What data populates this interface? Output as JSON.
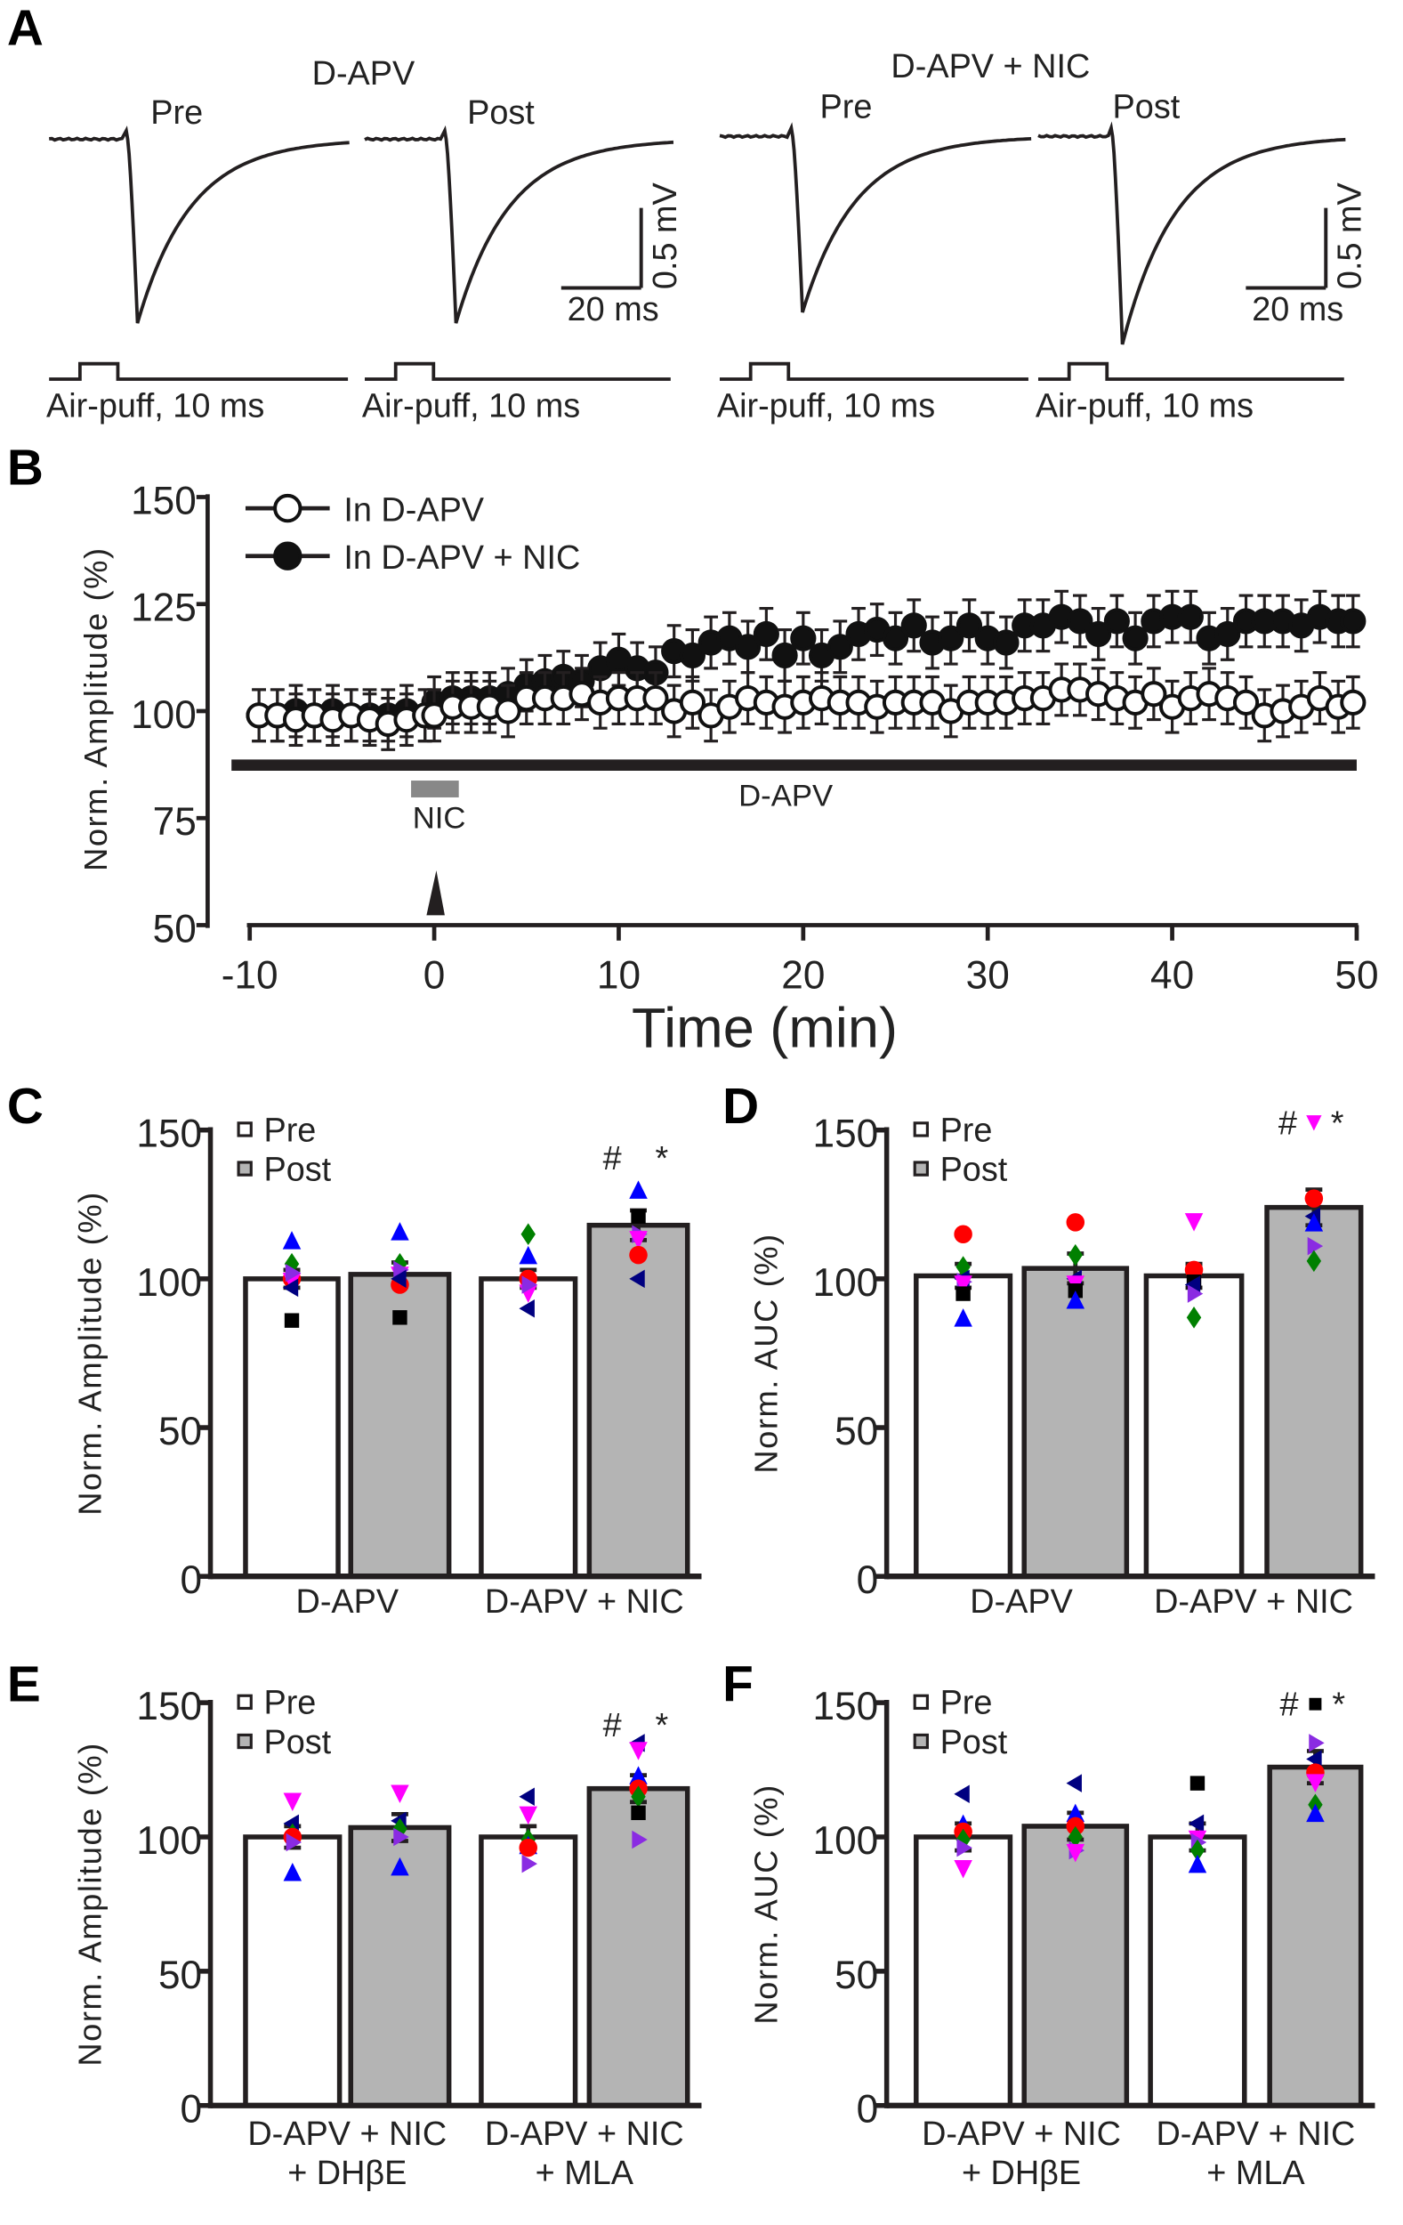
{
  "chart_data": [
    {
      "panel": "A",
      "type": "line",
      "title": "Example air-puff evoked responses",
      "groups": [
        {
          "title": "D-APV",
          "traces": [
            {
              "label": "Pre",
              "peak_mV": -1.15,
              "stimulus": "Air-puff, 10 ms"
            },
            {
              "label": "Post",
              "peak_mV": -1.15,
              "stimulus": "Air-puff, 10 ms"
            }
          ],
          "scale_x": "20 ms",
          "scale_y": "0.5 mV"
        },
        {
          "title": "D-APV + NIC",
          "traces": [
            {
              "label": "Pre",
              "peak_mV": -1.1,
              "stimulus": "Air-puff, 10 ms"
            },
            {
              "label": "Post",
              "peak_mV": -1.3,
              "stimulus": "Air-puff, 10 ms"
            }
          ],
          "scale_x": "20 ms",
          "scale_y": "0.5 mV"
        }
      ]
    },
    {
      "panel": "B",
      "type": "scatter",
      "xlabel": "Time (min)",
      "ylabel": "Norm. Amplitude (%)",
      "xlim": [
        -10,
        50
      ],
      "ylim": [
        50,
        150
      ],
      "xticks": [
        "-10",
        "0",
        "10",
        "20",
        "30",
        "40",
        "50"
      ],
      "yticks": [
        "50",
        "75",
        "100",
        "125",
        "150"
      ],
      "legend_position": "top-left",
      "annotations": {
        "bath_bar": "D-APV",
        "drug_bar": "NIC"
      },
      "x_pre": [
        -10,
        -9,
        -8,
        -7,
        -6,
        -5,
        -4,
        -3,
        -2,
        -1
      ],
      "x_post": [
        0,
        1,
        2,
        3,
        4,
        5,
        6,
        7,
        8,
        9,
        10,
        11,
        12,
        13,
        14,
        15,
        16,
        17,
        18,
        19,
        20,
        21,
        22,
        23,
        24,
        25,
        26,
        27,
        28,
        29,
        30,
        31,
        32,
        33,
        34,
        35,
        36,
        37,
        38,
        39,
        40,
        41,
        42,
        43,
        44,
        45,
        46,
        47,
        48,
        49,
        50
      ],
      "series": [
        {
          "name": "In D-APV",
          "marker": "open-circle",
          "error": 6,
          "pre": [
            99,
            99,
            98,
            99,
            98,
            99,
            98,
            97,
            98,
            99
          ],
          "post": [
            99,
            101,
            101,
            101,
            100,
            103,
            103,
            103,
            104,
            102,
            103,
            103,
            103,
            100,
            102,
            99,
            101,
            103,
            102,
            101,
            102,
            103,
            102,
            102,
            101,
            102,
            102,
            102,
            100,
            102,
            102,
            102,
            103,
            103,
            105,
            105,
            104,
            103,
            102,
            104,
            101,
            103,
            104,
            103,
            102,
            99,
            100,
            101,
            103,
            101,
            102
          ]
        },
        {
          "name": "In D-APV + NIC",
          "marker": "filled-circle",
          "error": 6,
          "pre": [
            99,
            99,
            100,
            99,
            100,
            99,
            99,
            99,
            100,
            99
          ],
          "post": [
            102,
            103,
            103,
            103,
            104,
            106,
            107,
            108,
            107,
            110,
            112,
            110,
            109,
            114,
            113,
            116,
            117,
            115,
            118,
            113,
            117,
            113,
            115,
            118,
            119,
            117,
            120,
            116,
            117,
            120,
            117,
            116,
            120,
            120,
            122,
            121,
            118,
            121,
            117,
            121,
            122,
            122,
            117,
            118,
            121,
            121,
            121,
            120,
            122,
            121,
            121
          ]
        }
      ]
    },
    {
      "panel": "C",
      "type": "bar",
      "ylabel": "Norm. Amplitude (%)",
      "ylim": [
        0,
        150
      ],
      "yticks": [
        "0",
        "50",
        "100",
        "150"
      ],
      "legend": [
        "Pre",
        "Post"
      ],
      "categories": [
        "D-APV",
        "D-APV + NIC"
      ],
      "annotation": [
        "#",
        "*"
      ],
      "annotation_marker": "diamond:#008000",
      "bars": [
        {
          "group": "Pre",
          "value": 100,
          "sem": 3,
          "points": [
            [
              113,
              "up",
              "#0000ff"
            ],
            [
              105,
              "dia",
              "#008000"
            ],
            [
              100,
              "cir",
              "#ff0000"
            ],
            [
              99,
              "dn",
              "#ff00ff"
            ],
            [
              102,
              "rt",
              "#8a2be2"
            ],
            [
              97,
              "lt",
              "#000080"
            ],
            [
              86,
              "sq",
              "#000000"
            ]
          ]
        },
        {
          "group": "Post",
          "value": 101.5,
          "sem": 4,
          "points": [
            [
              116,
              "up",
              "#0000ff"
            ],
            [
              105,
              "dia",
              "#008000"
            ],
            [
              98,
              "cir",
              "#ff0000"
            ],
            [
              101,
              "dn",
              "#ff00ff"
            ],
            [
              103,
              "rt",
              "#8a2be2"
            ],
            [
              100,
              "lt",
              "#000080"
            ],
            [
              87,
              "sq",
              "#000000"
            ]
          ]
        },
        {
          "group": "Pre",
          "value": 100,
          "sem": 3,
          "points": [
            [
              115,
              "dia",
              "#008000"
            ],
            [
              108,
              "up",
              "#0000ff"
            ],
            [
              100,
              "cir",
              "#ff0000"
            ],
            [
              95,
              "dn",
              "#ff00ff"
            ],
            [
              98,
              "rt",
              "#8a2be2"
            ],
            [
              90,
              "lt",
              "#000080"
            ]
          ]
        },
        {
          "group": "Post",
          "value": 118,
          "sem": 5,
          "points": [
            [
              130,
              "up",
              "#0000ff"
            ],
            [
              121,
              "sq",
              "#000000"
            ],
            [
              115,
              "rt",
              "#8a2be2"
            ],
            [
              113,
              "dn",
              "#ff00ff"
            ],
            [
              108,
              "cir",
              "#ff0000"
            ],
            [
              100,
              "lt",
              "#000080"
            ]
          ]
        }
      ]
    },
    {
      "panel": "D",
      "type": "bar",
      "ylabel": "Norm. AUC (%)",
      "ylim": [
        0,
        150
      ],
      "yticks": [
        "0",
        "50",
        "100",
        "150"
      ],
      "legend": [
        "Pre",
        "Post"
      ],
      "categories": [
        "D-APV",
        "D-APV + NIC"
      ],
      "annotation": [
        "#",
        "*"
      ],
      "annotation_marker": "dn:#ff00ff",
      "bars": [
        {
          "group": "Pre",
          "value": 101,
          "sem": 4,
          "points": [
            [
              115,
              "cir",
              "#ff0000"
            ],
            [
              104,
              "dia",
              "#008000"
            ],
            [
              100,
              "lt",
              "#000080"
            ],
            [
              99,
              "rt",
              "#8a2be2"
            ],
            [
              98,
              "dn",
              "#ff00ff"
            ],
            [
              95,
              "sq",
              "#000000"
            ],
            [
              87,
              "up",
              "#0000ff"
            ]
          ]
        },
        {
          "group": "Post",
          "value": 103.5,
          "sem": 5,
          "points": [
            [
              119,
              "cir",
              "#ff0000"
            ],
            [
              108,
              "dia",
              "#008000"
            ],
            [
              100,
              "lt",
              "#000080"
            ],
            [
              98,
              "dn",
              "#ff00ff"
            ],
            [
              96,
              "sq",
              "#000000"
            ],
            [
              93,
              "up",
              "#0000ff"
            ]
          ]
        },
        {
          "group": "Pre",
          "value": 101,
          "sem": 4,
          "points": [
            [
              119,
              "dn",
              "#ff00ff"
            ],
            [
              103,
              "cir",
              "#ff0000"
            ],
            [
              99,
              "sq",
              "#000000"
            ],
            [
              98,
              "lt",
              "#000080"
            ],
            [
              95,
              "rt",
              "#8a2be2"
            ],
            [
              87,
              "dia",
              "#008000"
            ]
          ]
        },
        {
          "group": "Post",
          "value": 124,
          "sem": 6,
          "points": [
            [
              127,
              "cir",
              "#ff0000"
            ],
            [
              121,
              "lt",
              "#000080"
            ],
            [
              119,
              "up",
              "#0000ff"
            ],
            [
              111,
              "rt",
              "#8a2be2"
            ],
            [
              106,
              "dia",
              "#008000"
            ]
          ]
        }
      ]
    },
    {
      "panel": "E",
      "type": "bar",
      "ylabel": "Norm. Amplitude (%)",
      "ylim": [
        0,
        150
      ],
      "yticks": [
        "0",
        "50",
        "100",
        "150"
      ],
      "legend": [
        "Pre",
        "Post"
      ],
      "categories": [
        "D-APV + NIC\n+ DHβE",
        "D-APV + NIC\n+ MLA"
      ],
      "category_lines": [
        [
          "D-APV + NIC",
          "+ DHβE"
        ],
        [
          "D-APV + NIC",
          "+ MLA"
        ]
      ],
      "annotation": [
        "#",
        "*"
      ],
      "annotation_marker": "",
      "bars": [
        {
          "group": "Pre",
          "value": 100,
          "sem": 4,
          "points": [
            [
              113,
              "dn",
              "#ff00ff"
            ],
            [
              105,
              "lt",
              "#000080"
            ],
            [
              101,
              "dia",
              "#008000"
            ],
            [
              100,
              "cir",
              "#ff0000"
            ],
            [
              98,
              "rt",
              "#8a2be2"
            ],
            [
              87,
              "up",
              "#0000ff"
            ]
          ]
        },
        {
          "group": "Post",
          "value": 103.5,
          "sem": 5,
          "points": [
            [
              116,
              "dn",
              "#ff00ff"
            ],
            [
              106,
              "lt",
              "#000080"
            ],
            [
              103,
              "dia",
              "#008000"
            ],
            [
              100,
              "rt",
              "#8a2be2"
            ],
            [
              89,
              "up",
              "#0000ff"
            ]
          ]
        },
        {
          "group": "Pre",
          "value": 100,
          "sem": 4,
          "points": [
            [
              115,
              "lt",
              "#000080"
            ],
            [
              108,
              "dn",
              "#ff00ff"
            ],
            [
              99,
              "dia",
              "#008000"
            ],
            [
              97,
              "up",
              "#0000ff"
            ],
            [
              96,
              "cir",
              "#ff0000"
            ],
            [
              90,
              "rt",
              "#8a2be2"
            ]
          ]
        },
        {
          "group": "Post",
          "value": 118,
          "sem": 5,
          "points": [
            [
              135,
              "lt",
              "#000080"
            ],
            [
              132,
              "dn",
              "#ff00ff"
            ],
            [
              123,
              "up",
              "#0000ff"
            ],
            [
              118,
              "cir",
              "#ff0000"
            ],
            [
              115,
              "dia",
              "#008000"
            ],
            [
              109,
              "sq",
              "#000000"
            ],
            [
              99,
              "rt",
              "#8a2be2"
            ]
          ]
        }
      ]
    },
    {
      "panel": "F",
      "type": "bar",
      "ylabel": "Norm. AUC (%)",
      "ylim": [
        0,
        150
      ],
      "yticks": [
        "0",
        "50",
        "100",
        "150"
      ],
      "legend": [
        "Pre",
        "Post"
      ],
      "categories": [
        "D-APV + NIC\n+ DHβE",
        "D-APV + NIC\n+ MLA"
      ],
      "category_lines": [
        [
          "D-APV + NIC",
          "+ DHβE"
        ],
        [
          "D-APV + NIC",
          "+ MLA"
        ]
      ],
      "annotation": [
        "#",
        "*"
      ],
      "annotation_marker": "sq:#000000",
      "bars": [
        {
          "group": "Pre",
          "value": 100,
          "sem": 5,
          "points": [
            [
              116,
              "lt",
              "#000080"
            ],
            [
              105,
              "up",
              "#0000ff"
            ],
            [
              102,
              "cir",
              "#ff0000"
            ],
            [
              99,
              "dia",
              "#008000"
            ],
            [
              96,
              "rt",
              "#8a2be2"
            ],
            [
              88,
              "dn",
              "#ff00ff"
            ]
          ]
        },
        {
          "group": "Post",
          "value": 104,
          "sem": 5,
          "points": [
            [
              120,
              "lt",
              "#000080"
            ],
            [
              109,
              "up",
              "#0000ff"
            ],
            [
              104,
              "cir",
              "#ff0000"
            ],
            [
              100,
              "dia",
              "#008000"
            ],
            [
              95,
              "rt",
              "#8a2be2"
            ],
            [
              94,
              "dn",
              "#ff00ff"
            ]
          ]
        },
        {
          "group": "Pre",
          "value": 100,
          "sem": 5,
          "points": [
            [
              120,
              "sq",
              "#000000"
            ],
            [
              105,
              "lt",
              "#000080"
            ],
            [
              99,
              "dn",
              "#ff00ff"
            ],
            [
              98,
              "rt",
              "#8a2be2"
            ],
            [
              95,
              "dia",
              "#008000"
            ],
            [
              90,
              "up",
              "#0000ff"
            ]
          ]
        },
        {
          "group": "Post",
          "value": 126,
          "sem": 6,
          "points": [
            [
              135,
              "rt",
              "#8a2be2"
            ],
            [
              129,
              "lt",
              "#000080"
            ],
            [
              124,
              "cir",
              "#ff0000"
            ],
            [
              120,
              "dn",
              "#ff00ff"
            ],
            [
              112,
              "dia",
              "#008000"
            ],
            [
              109,
              "up",
              "#0000ff"
            ]
          ]
        }
      ]
    }
  ],
  "colors": {
    "ink": "#231f20",
    "post_bar": "#b4b4b4",
    "pre_bar": "#ffffff",
    "nic_bar": "#888888"
  }
}
